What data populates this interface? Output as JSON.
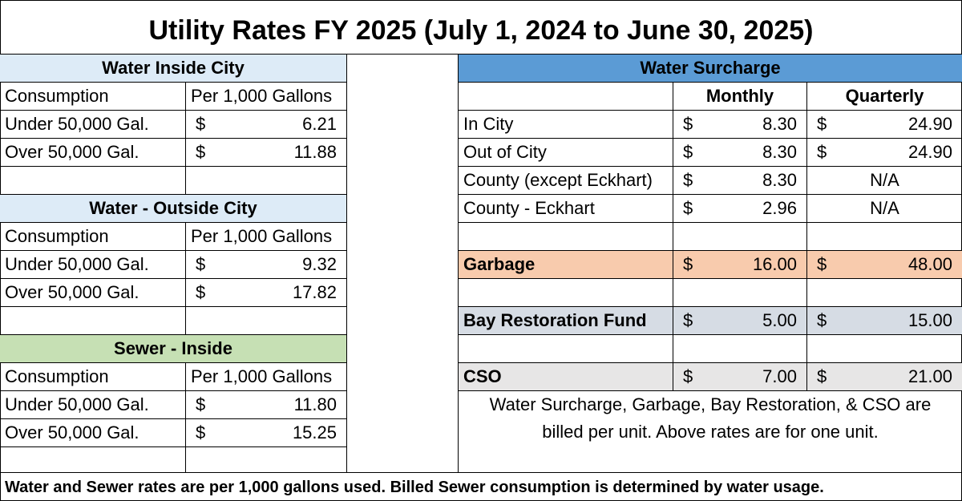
{
  "title": "Utility Rates FY 2025 (July 1, 2024 to June 30, 2025)",
  "water_inside": {
    "header": "Water Inside City",
    "col_consumption": "Consumption",
    "col_rate": "Per 1,000 Gallons",
    "rows": [
      {
        "label": "Under 50,000 Gal.",
        "currency": "$",
        "value": "6.21"
      },
      {
        "label": "Over 50,000 Gal.",
        "currency": "$",
        "value": "11.88"
      }
    ]
  },
  "water_outside": {
    "header": "Water - Outside City",
    "col_consumption": "Consumption",
    "col_rate": "Per 1,000 Gallons",
    "rows": [
      {
        "label": "Under 50,000 Gal.",
        "currency": "$",
        "value": "9.32"
      },
      {
        "label": "Over 50,000 Gal.",
        "currency": "$",
        "value": "17.82"
      }
    ]
  },
  "sewer_inside": {
    "header": "Sewer - Inside",
    "col_consumption": "Consumption",
    "col_rate": "Per 1,000 Gallons",
    "rows": [
      {
        "label": "Under 50,000 Gal.",
        "currency": "$",
        "value": "11.80"
      },
      {
        "label": "Over 50,000 Gal.",
        "currency": "$",
        "value": "15.25"
      }
    ]
  },
  "surcharge": {
    "header": "Water Surcharge",
    "col_monthly": "Monthly",
    "col_quarterly": "Quarterly",
    "rows": [
      {
        "label": "In City",
        "m_cur": "$",
        "monthly": "8.30",
        "q_cur": "$",
        "quarterly": "24.90"
      },
      {
        "label": "Out of City",
        "m_cur": "$",
        "monthly": "8.30",
        "q_cur": "$",
        "quarterly": "24.90"
      },
      {
        "label": "County (except Eckhart)",
        "m_cur": "$",
        "monthly": "8.30",
        "q_cur": "",
        "quarterly": "N/A"
      },
      {
        "label": "County - Eckhart",
        "m_cur": "$",
        "monthly": "2.96",
        "q_cur": "",
        "quarterly": "N/A"
      }
    ]
  },
  "garbage": {
    "label": "Garbage",
    "m_cur": "$",
    "monthly": "16.00",
    "q_cur": "$",
    "quarterly": "48.00"
  },
  "bay": {
    "label": "Bay Restoration Fund",
    "m_cur": "$",
    "monthly": "5.00",
    "q_cur": "$",
    "quarterly": "15.00"
  },
  "cso": {
    "label": "CSO",
    "m_cur": "$",
    "monthly": "7.00",
    "q_cur": "$",
    "quarterly": "21.00"
  },
  "note_line1": "Water Surcharge, Garbage, Bay Restoration, & CSO are",
  "note_line2": "billed per unit. Above rates are for one unit.",
  "footer": "Water and Sewer rates are per 1,000 gallons used. Billed Sewer consumption is determined by water usage.",
  "colors": {
    "light_blue": "#ddebf7",
    "blue": "#5b9bd5",
    "green": "#c6e0b4",
    "orange": "#f8cbad",
    "gray_blue": "#d6dce4",
    "light_gray": "#e7e6e6"
  }
}
